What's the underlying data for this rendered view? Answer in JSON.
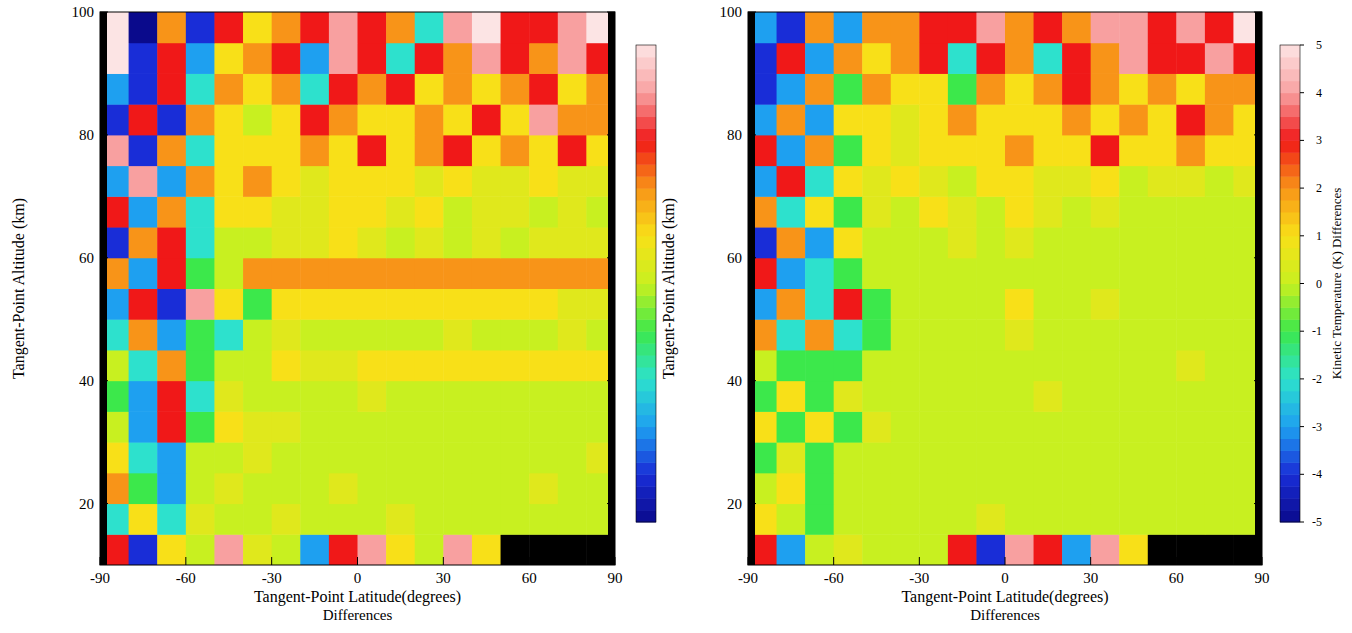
{
  "chart_data": [
    {
      "type": "heatmap",
      "xlabel": "Tangent-Point Latitude(degrees)",
      "subtitle": "Differences",
      "ylabel": "Tangent-Point Altitude (km)",
      "xlim": [
        -90,
        90
      ],
      "xticks": [
        -90,
        -60,
        -30,
        0,
        30,
        60,
        90
      ],
      "ylim": [
        10,
        100
      ],
      "yticks": [
        20,
        40,
        60,
        80,
        100
      ],
      "x": [
        -85,
        -75,
        -65,
        -55,
        -45,
        -35,
        -25,
        -15,
        -5,
        5,
        15,
        25,
        35,
        45,
        55,
        65,
        75,
        85
      ],
      "y": [
        12.5,
        17.5,
        22.5,
        27.5,
        32.5,
        37.5,
        42.5,
        47.5,
        52.5,
        57.5,
        62.5,
        67.5,
        72.5,
        77.5,
        82.5,
        87.5,
        92.5,
        97.5
      ],
      "cells": [
        [
          3,
          -4,
          1,
          0,
          4,
          0.5,
          0,
          -3,
          3,
          4,
          1,
          0,
          4,
          1,
          null,
          null,
          null,
          null
        ],
        [
          -2,
          1,
          -2,
          0.5,
          0,
          0,
          0.5,
          0,
          0,
          0,
          0.5,
          0,
          0,
          0,
          0,
          0,
          0,
          0
        ],
        [
          2,
          -1,
          -3,
          0,
          0.5,
          0,
          0,
          0,
          0.5,
          0,
          0,
          0,
          0,
          0,
          0,
          0.5,
          0,
          0
        ],
        [
          1,
          -2,
          -3,
          0,
          0,
          0.5,
          0,
          0,
          0,
          0,
          0,
          0,
          0,
          0,
          0,
          0,
          0,
          0.5
        ],
        [
          0,
          -3,
          3,
          -1,
          1,
          0.5,
          0.5,
          0,
          0,
          0,
          0,
          0,
          0,
          0,
          0,
          0,
          0,
          0
        ],
        [
          -1,
          -3,
          3,
          -2,
          0.5,
          0,
          0,
          0,
          0,
          0.5,
          0,
          0,
          0,
          0,
          0,
          0,
          0,
          0
        ],
        [
          0,
          -2,
          2,
          -1,
          0,
          0,
          1,
          0.5,
          0.5,
          1,
          1,
          1,
          1,
          1,
          1,
          1,
          1,
          1
        ],
        [
          -2,
          2,
          -3,
          -1,
          -2,
          0,
          0.5,
          0,
          0,
          0,
          0,
          0,
          0.5,
          0,
          0,
          0,
          0.5,
          0
        ],
        [
          -3,
          3,
          -4,
          4,
          1,
          -1,
          1,
          1,
          1,
          1,
          1,
          1,
          1,
          1,
          1,
          1,
          0.5,
          0.5
        ],
        [
          2,
          -3,
          3,
          -1,
          0,
          2,
          2,
          2,
          2,
          2,
          2,
          2,
          2,
          2,
          2,
          2,
          2,
          2
        ],
        [
          -4,
          2,
          3,
          -2,
          0,
          0,
          0.5,
          0.5,
          1,
          0.5,
          0,
          0.5,
          0,
          0.5,
          0,
          0.5,
          0.5,
          0.5
        ],
        [
          3,
          -3,
          2,
          -2,
          1,
          1,
          0.5,
          0.5,
          1,
          1,
          0.5,
          1,
          0,
          0.5,
          0.5,
          0,
          0.5,
          0
        ],
        [
          -3,
          4,
          -3,
          2,
          1,
          2,
          1,
          0.5,
          1,
          1,
          1,
          0.5,
          1,
          0.5,
          0.5,
          1,
          0.5,
          0.5
        ],
        [
          4,
          -4,
          2,
          -2,
          1,
          1,
          1,
          2,
          1,
          3,
          1,
          2,
          3,
          1,
          2,
          1,
          3,
          1
        ],
        [
          -4,
          3,
          -4,
          2,
          1,
          0,
          1,
          3,
          2,
          1,
          1,
          2,
          1,
          3,
          1,
          4,
          2,
          2
        ],
        [
          -3,
          -4,
          3,
          -2,
          2,
          1,
          2,
          -2,
          3,
          2,
          3,
          1,
          2,
          1,
          2,
          3,
          1,
          2
        ],
        [
          5,
          -4,
          3,
          -3,
          1,
          2,
          3,
          -3,
          4,
          3,
          -2,
          3,
          2,
          4,
          3,
          2,
          4,
          3
        ],
        [
          5,
          -5,
          2,
          -4,
          3,
          1,
          2,
          3,
          4,
          3,
          2,
          -2,
          4,
          5,
          3,
          3,
          4,
          5
        ]
      ],
      "colorbar": {
        "range": [
          -5,
          5
        ]
      }
    },
    {
      "type": "heatmap",
      "xlabel": "Tangent-Point Latitude(degrees)",
      "subtitle": "Differences",
      "ylabel": "Tangent-Point Altitude (km)",
      "xlim": [
        -90,
        90
      ],
      "xticks": [
        -90,
        -60,
        -30,
        0,
        30,
        60,
        90
      ],
      "ylim": [
        10,
        100
      ],
      "yticks": [
        20,
        40,
        60,
        80,
        100
      ],
      "x": [
        -85,
        -75,
        -65,
        -55,
        -45,
        -35,
        -25,
        -15,
        -5,
        5,
        15,
        25,
        35,
        45,
        55,
        65,
        75,
        85
      ],
      "y": [
        12.5,
        17.5,
        22.5,
        27.5,
        32.5,
        37.5,
        42.5,
        47.5,
        52.5,
        57.5,
        62.5,
        67.5,
        72.5,
        77.5,
        82.5,
        87.5,
        92.5,
        97.5
      ],
      "cells": [
        [
          3,
          -3,
          0,
          0.5,
          0,
          0,
          0,
          3,
          -4,
          4,
          3,
          -3,
          4,
          1,
          null,
          null,
          null,
          null
        ],
        [
          1,
          0,
          -1,
          0,
          0,
          0,
          0,
          0,
          0.5,
          0,
          0,
          0,
          0,
          0,
          0,
          0,
          0,
          0
        ],
        [
          0,
          1,
          -1,
          0,
          0,
          0,
          0,
          0,
          0,
          0,
          0,
          0,
          0,
          0,
          0,
          0,
          0,
          0
        ],
        [
          -1,
          0.5,
          -1,
          0,
          0,
          0,
          0,
          0,
          0,
          0,
          0,
          0,
          0,
          0,
          0,
          0,
          0,
          0
        ],
        [
          1,
          -1,
          1,
          -1,
          0.5,
          0,
          0,
          0,
          0,
          0,
          0,
          0,
          0,
          0,
          0,
          0,
          0,
          0
        ],
        [
          -1,
          1,
          -1,
          0.5,
          0,
          0,
          0,
          0,
          0,
          0,
          0.5,
          0,
          0,
          0,
          0,
          0,
          0,
          0
        ],
        [
          0,
          -1,
          -1,
          -1,
          0,
          0,
          0,
          0,
          0,
          0,
          0,
          0,
          0,
          0,
          0,
          0.5,
          0,
          0
        ],
        [
          2,
          -2,
          2,
          -2,
          -1,
          0,
          0,
          0,
          0,
          0.5,
          0,
          0,
          0,
          0,
          0,
          0,
          0,
          0
        ],
        [
          -3,
          2,
          -2,
          3,
          -1,
          0,
          0,
          0,
          0,
          1,
          0,
          0,
          0.5,
          0,
          0,
          0,
          0,
          0
        ],
        [
          3,
          -3,
          -2,
          -1,
          0,
          0,
          0,
          0,
          0,
          0,
          0,
          0,
          0,
          0,
          0,
          0,
          0,
          0
        ],
        [
          -4,
          2,
          -3,
          1,
          0,
          0,
          0,
          0.5,
          0,
          0.5,
          0,
          0,
          0,
          0,
          0,
          0,
          0,
          0
        ],
        [
          2,
          -2,
          1,
          -1,
          0.5,
          0,
          1,
          0.5,
          0,
          1,
          0.5,
          0,
          0.5,
          0,
          0,
          0,
          0,
          0
        ],
        [
          -3,
          3,
          -2,
          1,
          0.5,
          1,
          0.5,
          0,
          1,
          1,
          0.5,
          0.5,
          1,
          0,
          0.5,
          0.5,
          0,
          0.5
        ],
        [
          3,
          -3,
          2,
          -1,
          1,
          0.5,
          1,
          1,
          1,
          2,
          1,
          1,
          3,
          1,
          1,
          2,
          1,
          1
        ],
        [
          -3,
          2,
          -3,
          1,
          1,
          0.5,
          1,
          2,
          1,
          1,
          1,
          2,
          1,
          2,
          1,
          3,
          2,
          1
        ],
        [
          -4,
          -3,
          2,
          -1,
          2,
          1,
          1,
          -1,
          2,
          1,
          2,
          3,
          2,
          1,
          2,
          1,
          2,
          2
        ],
        [
          -4,
          3,
          -3,
          2,
          1,
          2,
          3,
          -2,
          3,
          2,
          -2,
          3,
          2,
          4,
          3,
          3,
          4,
          3
        ],
        [
          -3,
          -4,
          2,
          -3,
          2,
          2,
          3,
          3,
          4,
          2,
          3,
          2,
          4,
          4,
          3,
          4,
          3,
          5
        ]
      ],
      "colorbar": {
        "range": [
          -5,
          5
        ],
        "ticks": [
          -5,
          -4,
          -3,
          -2,
          -1,
          0,
          1,
          2,
          3,
          4,
          5
        ],
        "label": "Kinetic Temperature (K) Differences"
      }
    }
  ]
}
